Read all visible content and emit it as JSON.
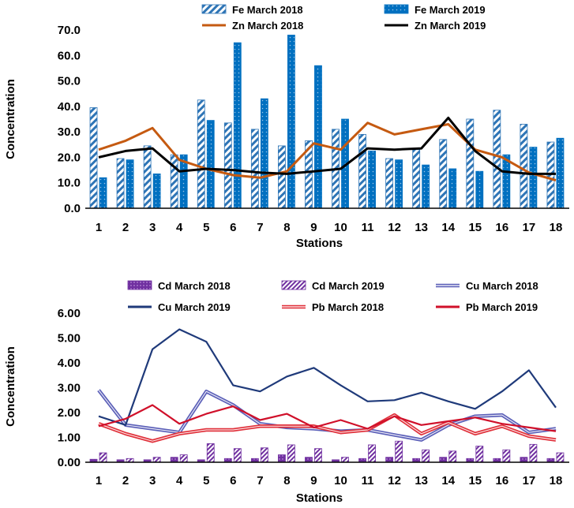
{
  "chart_data": [
    {
      "type": "bar+line",
      "title": "",
      "xlabel": "Stations",
      "ylabel": "Concentration",
      "ylim": [
        0,
        70
      ],
      "yticks": [
        "0.0",
        "10.0",
        "20.0",
        "30.0",
        "40.0",
        "50.0",
        "60.0",
        "70.0"
      ],
      "categories": [
        "1",
        "2",
        "3",
        "4",
        "5",
        "6",
        "7",
        "8",
        "9",
        "10",
        "11",
        "12",
        "13",
        "14",
        "15",
        "16",
        "17",
        "18"
      ],
      "series": [
        {
          "name": "Fe March 2018",
          "kind": "bar",
          "style": "hatch",
          "color": "#2E75B6",
          "values": [
            39.5,
            19.5,
            24.5,
            21,
            42.5,
            33.5,
            31,
            24.5,
            26.5,
            31,
            29,
            19.5,
            23,
            27,
            35,
            38.5,
            33,
            26
          ]
        },
        {
          "name": "Fe March 2019",
          "kind": "bar",
          "style": "dots",
          "color": "#0070C0",
          "values": [
            12,
            19,
            13.5,
            21,
            34.5,
            65,
            43,
            68,
            56,
            35,
            22.5,
            19,
            17,
            15.5,
            14.5,
            21,
            24,
            27.5
          ]
        },
        {
          "name": "Zn March 2018",
          "kind": "line",
          "color": "#C55A11",
          "values": [
            23,
            26.5,
            31.5,
            19,
            15.5,
            13,
            12,
            14.5,
            25.5,
            23,
            33.5,
            29,
            31,
            33,
            23,
            20,
            14,
            11
          ]
        },
        {
          "name": "Zn March 2019",
          "kind": "line",
          "color": "#000000",
          "values": [
            20,
            22.5,
            23.5,
            14.5,
            15.5,
            15,
            14,
            13.5,
            14.5,
            15.5,
            23.5,
            23,
            23.5,
            35.5,
            22.5,
            14.5,
            13.5,
            13.5
          ]
        }
      ],
      "legend": "top"
    },
    {
      "type": "bar+line",
      "title": "",
      "xlabel": "Stations",
      "ylabel": "Concentration",
      "ylim": [
        0,
        6
      ],
      "yticks": [
        "0.00",
        "1.00",
        "2.00",
        "3.00",
        "4.00",
        "5.00",
        "6.00"
      ],
      "categories": [
        "1",
        "2",
        "3",
        "4",
        "5",
        "6",
        "7",
        "8",
        "9",
        "10",
        "11",
        "12",
        "13",
        "14",
        "15",
        "16",
        "17",
        "18"
      ],
      "series": [
        {
          "name": "Cd March 2018",
          "kind": "bar",
          "style": "dots",
          "color": "#7030A0",
          "values": [
            0.12,
            0.1,
            0.1,
            0.2,
            0.1,
            0.15,
            0.15,
            0.3,
            0.2,
            0.1,
            0.15,
            0.2,
            0.15,
            0.2,
            0.15,
            0.15,
            0.2,
            0.15
          ]
        },
        {
          "name": "Cd March 2019",
          "kind": "bar",
          "style": "hatch",
          "color": "#7030A0",
          "values": [
            0.38,
            0.15,
            0.2,
            0.3,
            0.75,
            0.55,
            0.58,
            0.7,
            0.55,
            0.2,
            0.7,
            0.85,
            0.5,
            0.45,
            0.65,
            0.5,
            0.72,
            0.38
          ]
        },
        {
          "name": "Cu March 2018",
          "kind": "line",
          "style": "double",
          "color": "#5B5FB8",
          "values": [
            2.9,
            1.5,
            1.35,
            1.2,
            2.85,
            2.3,
            1.55,
            1.4,
            1.35,
            1.25,
            1.3,
            1.1,
            0.9,
            1.5,
            1.85,
            1.9,
            1.2,
            1.35
          ]
        },
        {
          "name": "Cu March 2019",
          "kind": "line",
          "style": "solid",
          "color": "#1F3A7A",
          "values": [
            1.85,
            1.5,
            4.55,
            5.35,
            4.85,
            3.1,
            2.85,
            3.45,
            3.8,
            3.1,
            2.45,
            2.5,
            2.8,
            2.45,
            2.15,
            2.85,
            3.7,
            2.2
          ]
        },
        {
          "name": "Pb March 2018",
          "kind": "line",
          "style": "double",
          "color": "#E0303A",
          "values": [
            1.55,
            1.15,
            0.85,
            1.15,
            1.3,
            1.3,
            1.45,
            1.45,
            1.45,
            1.2,
            1.3,
            1.9,
            1.15,
            1.6,
            1.15,
            1.45,
            1.05,
            0.9
          ]
        },
        {
          "name": "Pb March 2019",
          "kind": "line",
          "style": "solid",
          "color": "#D0102A",
          "values": [
            1.45,
            1.75,
            2.3,
            1.55,
            1.95,
            2.25,
            1.7,
            1.95,
            1.4,
            1.7,
            1.35,
            1.85,
            1.5,
            1.65,
            1.8,
            1.55,
            1.4,
            1.25
          ]
        }
      ],
      "legend": "top"
    }
  ]
}
